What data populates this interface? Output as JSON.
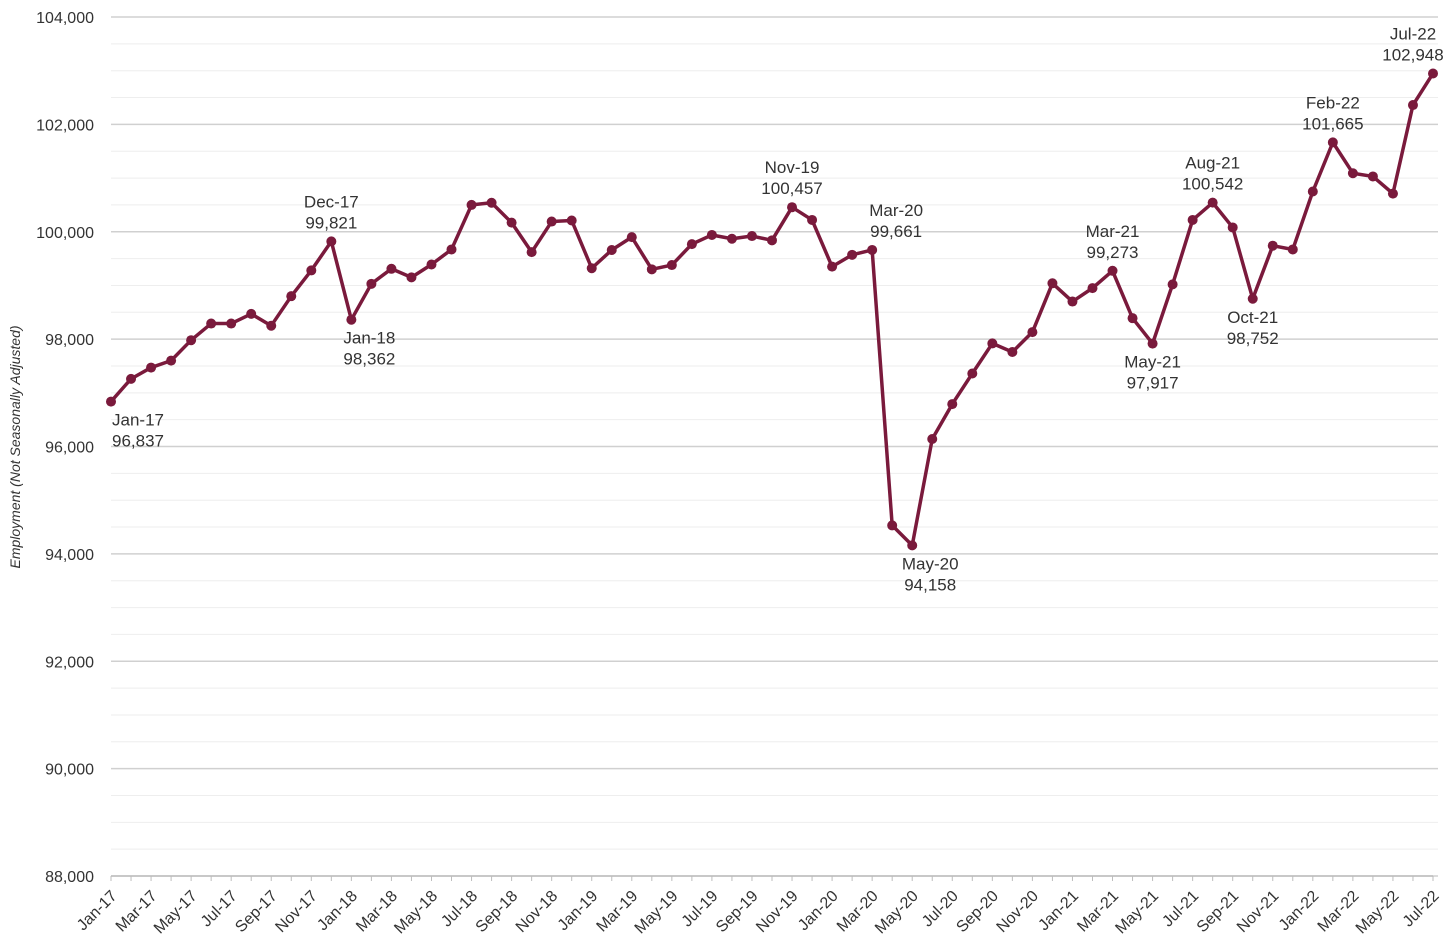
{
  "chart_data": {
    "type": "line",
    "title": "",
    "xlabel": "",
    "ylabel": "Employment (Not Seasonally Adjusted)",
    "ylim": [
      88000,
      104000
    ],
    "yticks": [
      88000,
      90000,
      92000,
      94000,
      96000,
      98000,
      100000,
      102000,
      104000
    ],
    "ytick_labels": [
      "88,000",
      "90,000",
      "92,000",
      "94,000",
      "96,000",
      "98,000",
      "100,000",
      "102,000",
      "104,000"
    ],
    "grid": "horizontal",
    "line_color": "#7a1a3c",
    "x": [
      "Jan-17",
      "Feb-17",
      "Mar-17",
      "Apr-17",
      "May-17",
      "Jun-17",
      "Jul-17",
      "Aug-17",
      "Sep-17",
      "Oct-17",
      "Nov-17",
      "Dec-17",
      "Jan-18",
      "Feb-18",
      "Mar-18",
      "Apr-18",
      "May-18",
      "Jun-18",
      "Jul-18",
      "Aug-18",
      "Sep-18",
      "Oct-18",
      "Nov-18",
      "Dec-18",
      "Jan-19",
      "Feb-19",
      "Mar-19",
      "Apr-19",
      "May-19",
      "Jun-19",
      "Jul-19",
      "Aug-19",
      "Sep-19",
      "Oct-19",
      "Nov-19",
      "Dec-19",
      "Jan-20",
      "Feb-20",
      "Mar-20",
      "Apr-20",
      "May-20",
      "Jun-20",
      "Jul-20",
      "Aug-20",
      "Sep-20",
      "Oct-20",
      "Nov-20",
      "Dec-20",
      "Jan-21",
      "Feb-21",
      "Mar-21",
      "Apr-21",
      "May-21",
      "Jun-21",
      "Jul-21",
      "Aug-21",
      "Sep-21",
      "Oct-21",
      "Nov-21",
      "Dec-21",
      "Jan-22",
      "Feb-22",
      "Mar-22",
      "Apr-22",
      "May-22",
      "Jun-22",
      "Jul-22"
    ],
    "xtick_labels": [
      "Jan-17",
      "Mar-17",
      "May-17",
      "Jul-17",
      "Sep-17",
      "Nov-17",
      "Jan-18",
      "Mar-18",
      "May-18",
      "Jul-18",
      "Sep-18",
      "Nov-18",
      "Jan-19",
      "Mar-19",
      "May-19",
      "Jul-19",
      "Sep-19",
      "Nov-19",
      "Jan-20",
      "Mar-20",
      "May-20",
      "Jul-20",
      "Sep-20",
      "Nov-20",
      "Jan-21",
      "Mar-21",
      "May-21",
      "Jul-21",
      "Sep-21",
      "Nov-21",
      "Jan-22",
      "Mar-22",
      "May-22",
      "Jul-22"
    ],
    "series": [
      {
        "values": [
          96837,
          97260,
          97470,
          97600,
          97980,
          98290,
          98290,
          98470,
          98250,
          98800,
          99280,
          99821,
          98362,
          99030,
          99310,
          99150,
          99390,
          99670,
          100500,
          100540,
          100170,
          99620,
          100190,
          100210,
          99320,
          99660,
          99900,
          99300,
          99380,
          99770,
          99940,
          99870,
          99920,
          99840,
          100457,
          100220,
          99350,
          99570,
          99661,
          94530,
          94158,
          96140,
          96790,
          97360,
          97920,
          97760,
          98130,
          99040,
          98700,
          98950,
          99273,
          98390,
          97917,
          99020,
          100220,
          100542,
          100080,
          98752,
          99740,
          99670,
          100750,
          101665,
          101090,
          101030,
          100710,
          102360,
          102948
        ]
      }
    ],
    "annotations": [
      {
        "index": 0,
        "label": "Jan-17",
        "value": "96,837",
        "position": "below-right"
      },
      {
        "index": 11,
        "label": "Dec-17",
        "value": "99,821",
        "position": "above"
      },
      {
        "index": 12,
        "label": "Jan-18",
        "value": "98,362",
        "position": "below-right"
      },
      {
        "index": 34,
        "label": "Nov-19",
        "value": "100,457",
        "position": "above"
      },
      {
        "index": 38,
        "label": "Mar-20",
        "value": "99,661",
        "position": "above-right"
      },
      {
        "index": 40,
        "label": "May-20",
        "value": "94,158",
        "position": "below-right"
      },
      {
        "index": 50,
        "label": "Mar-21",
        "value": "99,273",
        "position": "above"
      },
      {
        "index": 52,
        "label": "May-21",
        "value": "97,917",
        "position": "below"
      },
      {
        "index": 55,
        "label": "Aug-21",
        "value": "100,542",
        "position": "above"
      },
      {
        "index": 57,
        "label": "Oct-21",
        "value": "98,752",
        "position": "below"
      },
      {
        "index": 61,
        "label": "Feb-22",
        "value": "101,665",
        "position": "above"
      },
      {
        "index": 66,
        "label": "Jul-22",
        "value": "102,948",
        "position": "above-left"
      }
    ]
  }
}
